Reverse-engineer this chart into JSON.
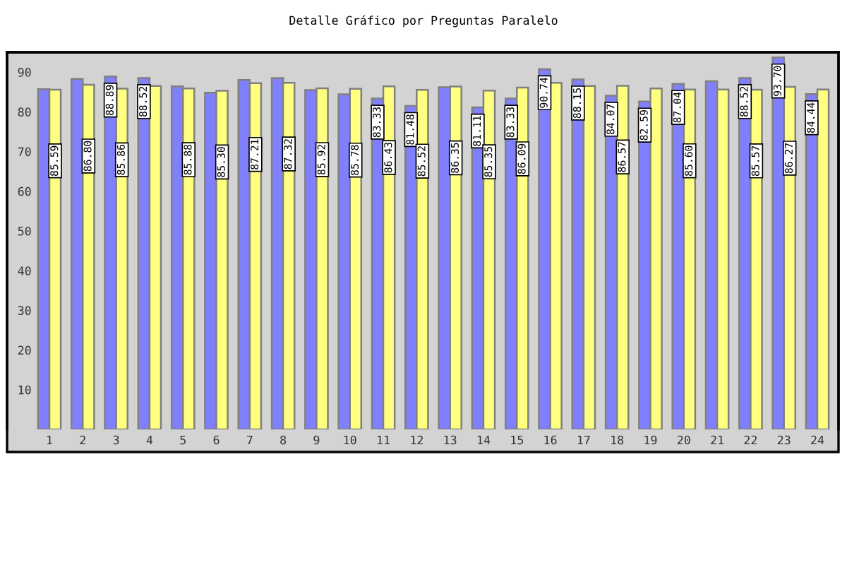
{
  "chart_data": {
    "type": "bar",
    "title": "Detalle Gráfico por Preguntas Paralelo",
    "categories": [
      "1",
      "2",
      "3",
      "4",
      "5",
      "6",
      "7",
      "8",
      "9",
      "10",
      "11",
      "12",
      "13",
      "14",
      "15",
      "16",
      "17",
      "18",
      "19",
      "20",
      "21",
      "22",
      "23",
      "24"
    ],
    "series": [
      {
        "color": "#8080ff",
        "values": [
          85.7,
          88.3,
          88.89,
          88.52,
          86.4,
          84.8,
          88.0,
          88.5,
          85.5,
          84.4,
          83.33,
          81.48,
          86.2,
          81.11,
          83.33,
          90.74,
          88.15,
          84.07,
          82.59,
          87.04,
          87.7,
          88.52,
          93.7,
          84.44
        ],
        "value_labels": [
          null,
          null,
          "88.89",
          "88.52",
          null,
          null,
          null,
          null,
          null,
          null,
          "83.33",
          "81.48",
          null,
          "81.11",
          "83.33",
          "90.74",
          "88.15",
          "84.07",
          "82.59",
          "87.04",
          null,
          "88.52",
          "93.70",
          "84.44"
        ]
      },
      {
        "color": "#ffff80",
        "values": [
          85.59,
          86.8,
          85.86,
          86.5,
          85.88,
          85.3,
          87.21,
          87.32,
          85.92,
          85.78,
          86.43,
          85.52,
          86.35,
          85.35,
          86.09,
          87.3,
          86.5,
          86.57,
          85.9,
          85.6,
          85.6,
          85.57,
          86.27,
          85.6
        ],
        "value_labels": [
          "85.59",
          "86.80",
          "85.86",
          null,
          "85.88",
          "85.30",
          "87.21",
          "87.32",
          "85.92",
          "85.78",
          "86.43",
          "85.52",
          "86.35",
          "85.35",
          "86.09",
          null,
          null,
          "86.57",
          null,
          "85.60",
          null,
          "85.57",
          "86.27",
          null
        ]
      }
    ],
    "ylim": [
      0,
      95
    ],
    "yticks": [
      10,
      20,
      30,
      40,
      50,
      60,
      70,
      80,
      90
    ]
  }
}
